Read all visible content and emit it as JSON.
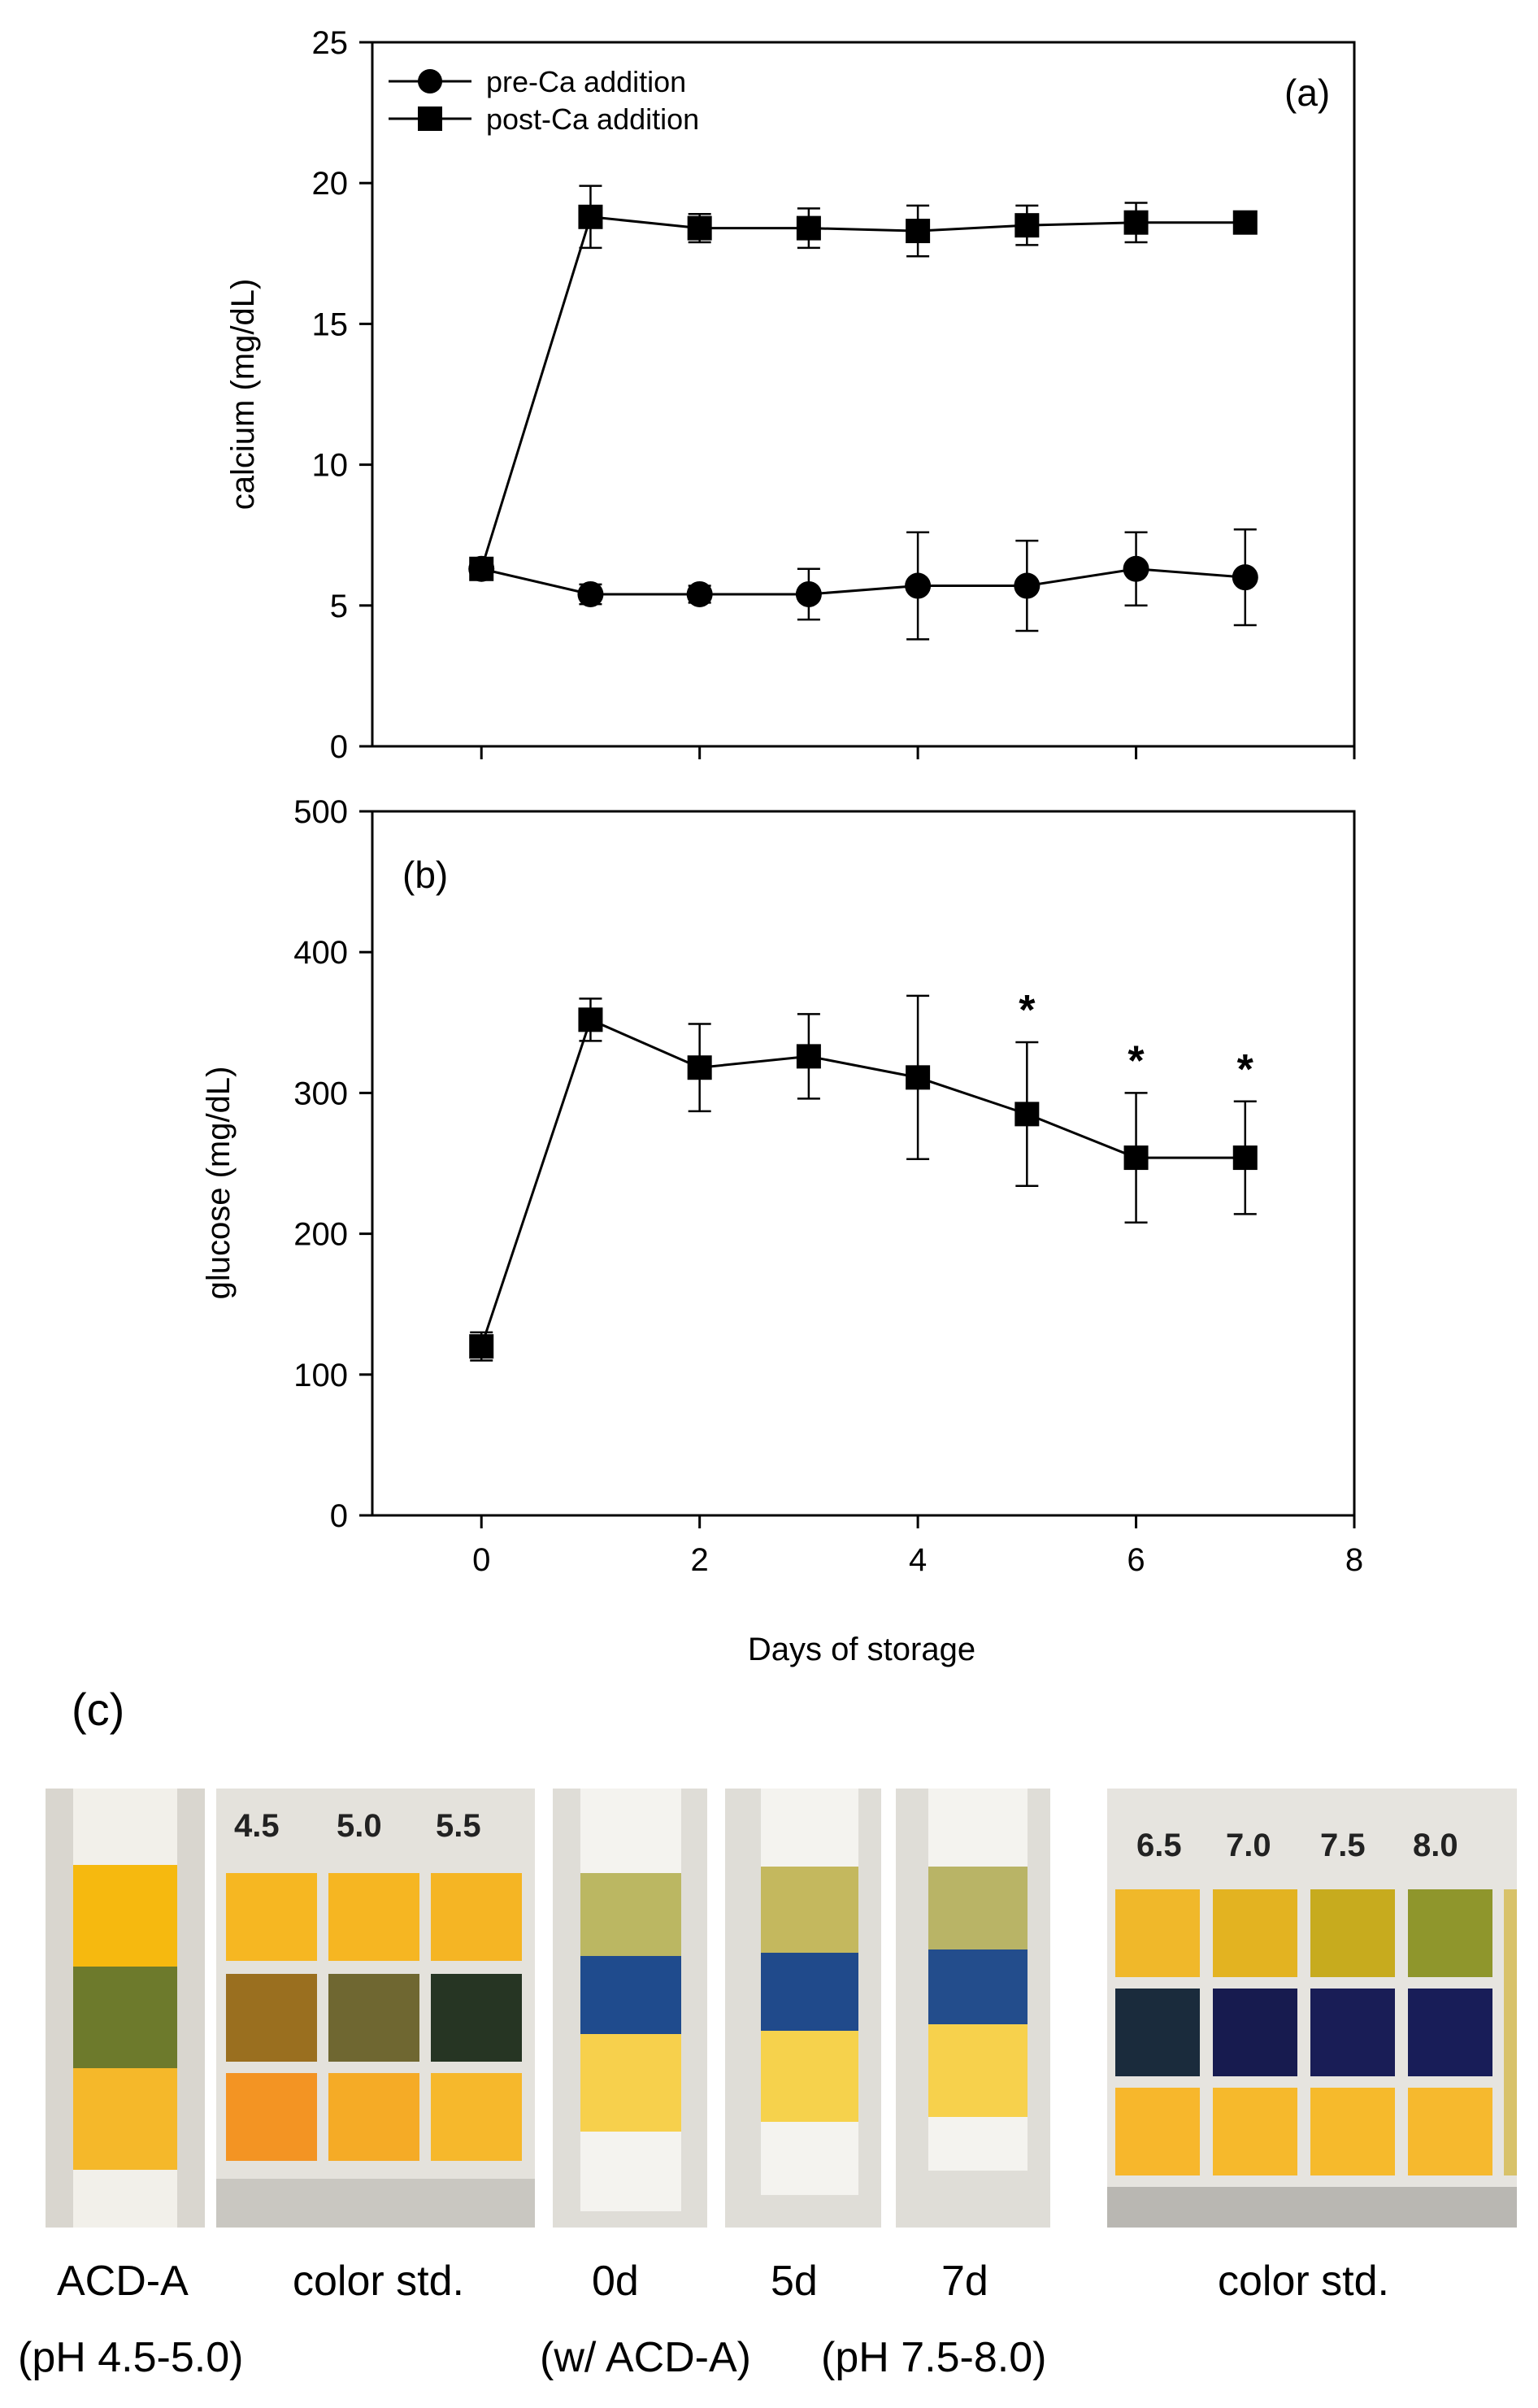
{
  "chart_data": [
    {
      "type": "line",
      "panel_label": "(a)",
      "xlabel": "",
      "ylabel": "calcium (mg/dL)",
      "xlim": [
        -1,
        8
      ],
      "ylim": [
        0,
        25
      ],
      "xticks": [
        0,
        2,
        4,
        6,
        8
      ],
      "yticks": [
        0,
        5,
        10,
        15,
        20,
        25
      ],
      "legend_position": "top-left",
      "series": [
        {
          "name": "pre-Ca addition",
          "marker": "circle",
          "x": [
            0,
            1,
            2,
            3,
            4,
            5,
            6,
            7
          ],
          "values": [
            6.3,
            5.4,
            5.4,
            5.4,
            5.7,
            5.7,
            6.3,
            6.0
          ],
          "error": [
            0.3,
            0.35,
            0.3,
            0.9,
            1.9,
            1.6,
            1.3,
            1.7
          ]
        },
        {
          "name": "post-Ca addition",
          "marker": "square",
          "x": [
            0,
            1,
            2,
            3,
            4,
            5,
            6,
            7
          ],
          "values": [
            6.3,
            18.8,
            18.4,
            18.4,
            18.3,
            18.5,
            18.6,
            18.6
          ],
          "error": [
            0.3,
            1.1,
            0.5,
            0.7,
            0.9,
            0.7,
            0.7,
            0.1
          ]
        }
      ]
    },
    {
      "type": "line",
      "panel_label": "(b)",
      "xlabel": "Days of storage",
      "ylabel": "glucose (mg/dL)",
      "xlim": [
        -1,
        8
      ],
      "ylim": [
        0,
        500
      ],
      "xticks": [
        0,
        2,
        4,
        6,
        8
      ],
      "yticks": [
        0,
        100,
        200,
        300,
        400,
        500
      ],
      "series": [
        {
          "marker": "square",
          "x": [
            0,
            1,
            2,
            3,
            4,
            5,
            6,
            7
          ],
          "values": [
            120,
            352,
            318,
            326,
            311,
            285,
            254,
            254
          ],
          "error": [
            10,
            15,
            31,
            30,
            58,
            51,
            46,
            40
          ]
        }
      ],
      "significance_marker": "*",
      "significant_x": [
        5,
        6,
        7
      ]
    }
  ],
  "panel_c": {
    "label": "(c)",
    "std_left_numbers": [
      "4.5",
      "5.0",
      "5.5"
    ],
    "std_right_numbers": [
      "6.5",
      "7.0",
      "7.5",
      "8.0"
    ],
    "captions": {
      "acd_a": "ACD-A",
      "acd_a_ph": "(pH 4.5-5.0)",
      "color_std_left": "color std.",
      "d0": "0d",
      "d5": "5d",
      "d7": "7d",
      "with_acd": "(w/  ACD-A)",
      "ph_range": "(pH 7.5-8.0)",
      "color_std_right": "color std."
    },
    "colors": {
      "pad_yellow": "#f5b81c",
      "pad_olive": "#6e7a2a",
      "pad_green_yellow": "#b9b460",
      "pad_blue": "#1f4a8e",
      "pad_light_yellow": "#f7d04a",
      "pad_orange": "#f29a1e"
    }
  }
}
